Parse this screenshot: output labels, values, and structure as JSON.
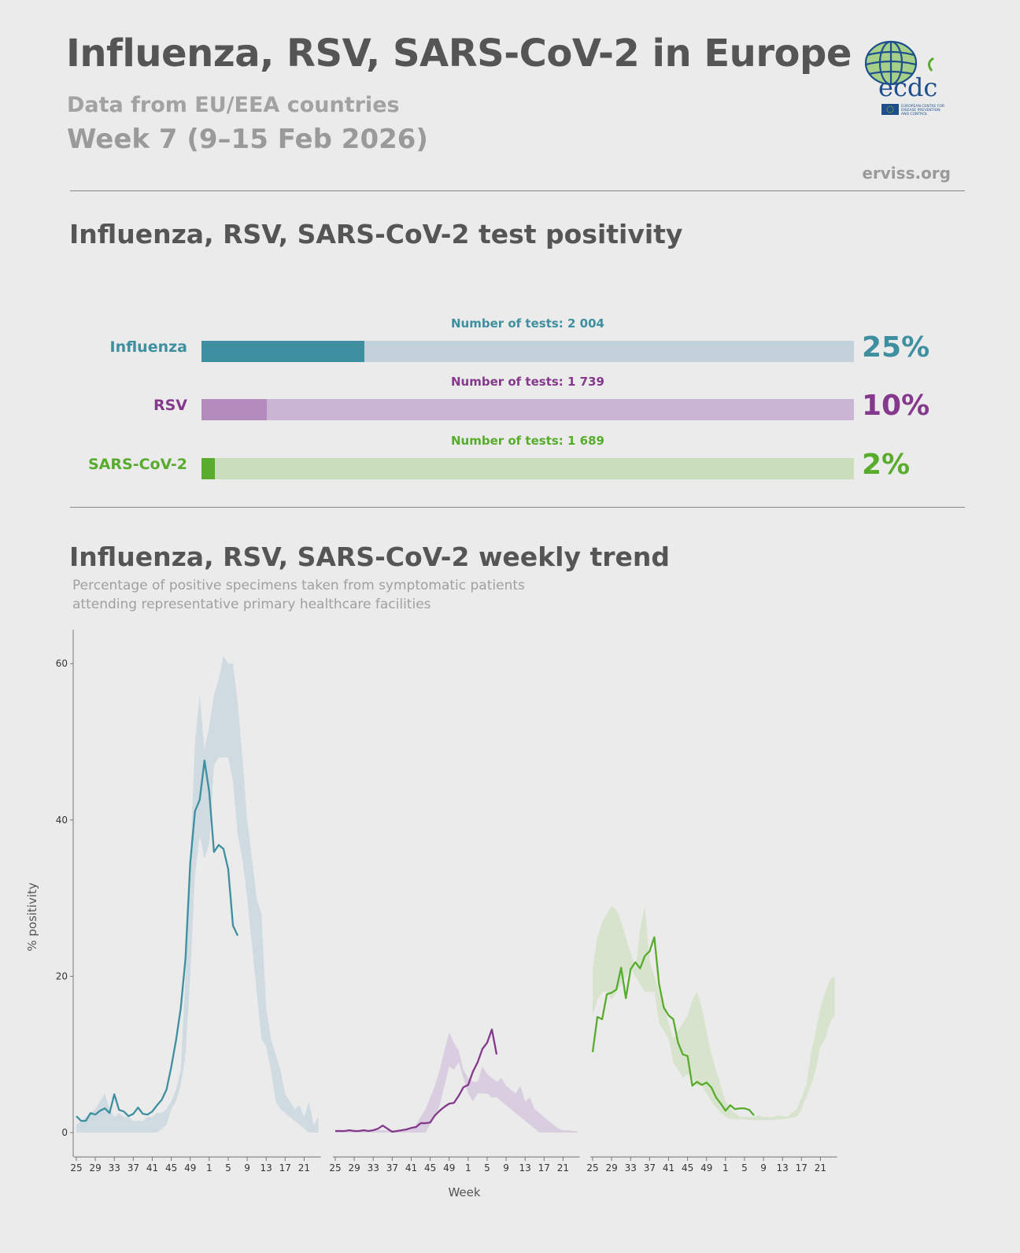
{
  "header": {
    "title": "Influenza, RSV, SARS-CoV-2 in Europe",
    "subtitle": "Data from EU/EEA countries",
    "week": "Week 7 (9–15 Feb 2026)",
    "site": "erviss.org",
    "logo_text": "ecdc",
    "logo_caption": "EUROPEAN CENTRE FOR DISEASE PREVENTION AND CONTROL"
  },
  "positivity": {
    "title": "Influenza, RSV, SARS-CoV-2 test positivity",
    "rows": [
      {
        "label": "Influenza",
        "tests": "Number of tests: 2 004",
        "percent_label": "25%",
        "percent": 25,
        "color": "#3e8fa0",
        "fill": "#3e8fa0",
        "track": "#c3d2da"
      },
      {
        "label": "RSV",
        "tests": "Number of tests: 1 739",
        "percent_label": "10%",
        "percent": 10,
        "color": "#85398c",
        "fill": "#b38bbd",
        "track": "#cab5d4"
      },
      {
        "label": "SARS-CoV-2",
        "tests": "Number of tests: 1 689",
        "percent_label": "2%",
        "percent": 2,
        "color": "#58ac2c",
        "fill": "#58ac2c",
        "track": "#cadebb"
      }
    ]
  },
  "trend": {
    "title": "Influenza, RSV, SARS-CoV-2 weekly trend",
    "description": "Percentage of positive specimens taken from symptomatic patients attending representative primary healthcare facilities"
  },
  "chart_data": {
    "type": "line",
    "xlabel": "Week",
    "ylabel": "% positivity",
    "ylim": [
      0,
      62
    ],
    "yticks": [
      0,
      20,
      40,
      60
    ],
    "x_weeks": [
      25,
      26,
      27,
      28,
      29,
      30,
      31,
      32,
      33,
      34,
      35,
      36,
      37,
      38,
      39,
      40,
      41,
      42,
      43,
      44,
      45,
      46,
      47,
      48,
      49,
      50,
      51,
      52,
      1,
      2,
      3,
      4,
      5,
      6,
      7,
      8,
      9,
      10,
      11,
      12,
      13,
      14,
      15,
      16,
      17,
      18,
      19,
      20,
      21,
      22,
      23,
      24
    ],
    "xtick_labels": [
      "25",
      "29",
      "33",
      "37",
      "41",
      "45",
      "49",
      "1",
      "5",
      "9",
      "13",
      "17",
      "21"
    ],
    "grid": false,
    "panels": [
      {
        "series": "Influenza",
        "line_color": "#3e8fa0",
        "band_color": "#cdd9e0",
        "values": [
          2.1,
          1.5,
          1.5,
          2.5,
          2.3,
          2.8,
          3.1,
          2.5,
          4.9,
          2.9,
          2.7,
          2.1,
          2.4,
          3.2,
          2.4,
          2.3,
          2.7,
          3.5,
          4.2,
          5.5,
          8.4,
          11.8,
          15.9,
          22.3,
          34.5,
          41.1,
          42.6,
          47.6,
          43.6,
          35.9,
          36.8,
          36.3,
          33.7,
          26.5,
          25.2
        ],
        "band_upper": [
          1,
          1.5,
          2,
          2.5,
          3,
          4,
          5,
          3,
          2,
          2.5,
          2,
          2,
          1.5,
          1.5,
          1.5,
          2,
          2,
          2.5,
          2.5,
          3,
          4,
          5.5,
          8,
          20,
          35,
          50,
          56,
          49,
          52,
          56,
          58,
          61,
          60,
          60,
          55,
          48,
          40,
          35,
          30,
          28,
          16,
          12,
          10,
          8,
          5,
          4,
          3,
          3.5,
          2,
          4,
          1,
          2
        ],
        "band_lower": [
          0,
          0,
          0,
          0,
          0,
          0,
          0,
          0,
          0,
          0,
          0,
          0,
          0,
          0,
          0,
          0,
          0,
          0,
          0.5,
          1,
          3,
          4,
          6,
          10,
          20,
          33,
          38,
          35,
          37,
          47,
          48,
          48,
          48,
          45,
          38,
          35,
          30,
          24,
          18,
          12,
          11,
          8,
          4,
          3,
          2.5,
          2,
          1.5,
          1,
          0.5,
          0,
          0,
          0
        ]
      },
      {
        "series": "RSV",
        "line_color": "#85398c",
        "band_color": "#d7cbdf",
        "values": [
          0.2,
          0.2,
          0.2,
          0.3,
          0.2,
          0.2,
          0.3,
          0.2,
          0.3,
          0.5,
          0.9,
          0.5,
          0.1,
          0.2,
          0.3,
          0.4,
          0.6,
          0.7,
          1.2,
          1.2,
          1.3,
          2.2,
          2.8,
          3.3,
          3.7,
          3.8,
          4.7,
          5.8,
          6.1,
          7.8,
          9.0,
          10.7,
          11.5,
          13.2,
          10.0
        ],
        "band_upper": [
          0.3,
          0.3,
          0.3,
          0.3,
          0.3,
          0.3,
          0.3,
          0.3,
          0.3,
          0.3,
          0.3,
          0.3,
          0.3,
          0.3,
          0.3,
          0.3,
          0.5,
          1,
          2,
          3,
          4.5,
          6,
          8,
          10.5,
          12.8,
          11.5,
          10.5,
          8,
          7,
          6.5,
          6.5,
          8.5,
          7.5,
          7,
          6.5,
          7,
          6,
          5.5,
          5,
          6,
          4,
          4.5,
          3,
          2.5,
          2,
          1.5,
          1,
          0.5,
          0.3,
          0.3,
          0.2,
          0.2
        ],
        "band_lower": [
          0,
          0,
          0,
          0,
          0,
          0,
          0,
          0,
          0,
          0,
          0,
          0,
          0,
          0,
          0,
          0,
          0,
          0,
          0,
          0,
          1,
          2,
          3.5,
          6,
          8.5,
          8,
          9,
          7,
          5,
          4,
          5,
          5,
          5,
          4.5,
          4.5,
          4,
          3.5,
          3,
          2.5,
          2,
          1.5,
          1,
          0.5,
          0,
          0,
          0,
          0,
          0,
          0,
          0,
          0,
          0
        ]
      },
      {
        "series": "SARS-CoV-2",
        "line_color": "#58ac2c",
        "band_color": "#d6e2cb",
        "values": [
          10.3,
          14.8,
          14.5,
          17.7,
          17.9,
          18.3,
          21.1,
          17.2,
          20.9,
          21.8,
          21.0,
          22.6,
          23.2,
          25.0,
          19.0,
          16.0,
          15.0,
          14.5,
          11.5,
          10.0,
          9.8,
          6.0,
          6.5,
          6.1,
          6.4,
          5.8,
          4.5,
          3.7,
          2.8,
          3.5,
          3.0,
          3.1,
          3.1,
          2.9,
          2.2
        ],
        "band_upper": [
          21,
          25,
          27,
          28,
          29,
          28.5,
          27,
          25,
          23,
          21,
          26,
          29,
          22,
          20,
          18,
          16,
          14,
          12,
          13,
          14,
          15,
          17,
          18,
          16,
          13,
          10,
          8,
          6,
          4,
          3,
          2.5,
          2,
          2,
          2,
          2,
          2.2,
          2,
          2,
          2,
          2.2,
          2.1,
          2,
          2.5,
          3,
          4.5,
          6,
          10,
          13,
          16,
          18,
          19.5,
          20
        ],
        "band_lower": [
          15,
          17,
          18,
          18,
          17,
          18,
          19,
          20,
          21,
          20,
          19,
          18,
          18,
          18,
          14,
          13,
          12,
          9,
          8,
          7,
          7.5,
          7,
          6,
          6,
          5,
          4,
          3.2,
          2.5,
          2,
          1.8,
          1.7,
          1.7,
          1.7,
          1.6,
          1.6,
          1.6,
          1.6,
          1.6,
          1.6,
          1.7,
          1.7,
          1.8,
          1.9,
          2,
          3,
          4.5,
          6,
          8,
          11,
          12,
          14,
          15
        ]
      }
    ]
  }
}
